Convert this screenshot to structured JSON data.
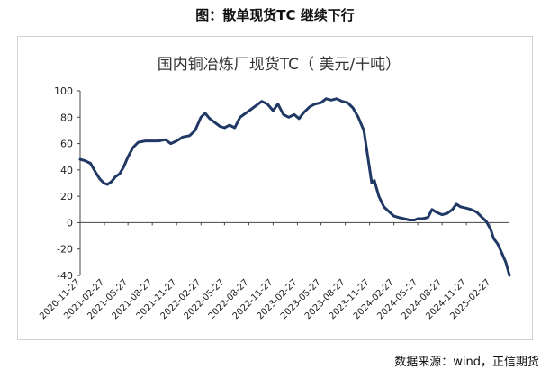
{
  "figure_caption": "图：散单现货TC 继续下行",
  "source": "数据来源：wind，正信期货",
  "colors": {
    "line": "#1f3864",
    "axis": "#444444",
    "frame": "#d0d0d0"
  },
  "chart_data": {
    "type": "line",
    "title": "国内铜冶炼厂现货TC（ 美元/干吨）",
    "xlabel": "",
    "ylabel": "",
    "ylim": [
      -40,
      100
    ],
    "yticks": [
      -40,
      -20,
      0,
      20,
      40,
      60,
      80,
      100
    ],
    "grid": false,
    "legend": "none",
    "x_start": "2020-11-27",
    "x_end": "2025-05-09",
    "xtick_labels": [
      "2020-11-27",
      "2021-02-27",
      "2021-05-27",
      "2021-08-27",
      "2021-11-27",
      "2022-02-27",
      "2022-05-27",
      "2022-08-27",
      "2022-11-27",
      "2023-02-27",
      "2023-05-27",
      "2023-08-27",
      "2023-11-27",
      "2024-02-27",
      "2024-05-27",
      "2024-08-27",
      "2024-11-27",
      "2025-02-27"
    ],
    "series": [
      {
        "points": [
          [
            "2020-11-27",
            48
          ],
          [
            "2020-12-15",
            47
          ],
          [
            "2021-01-05",
            45
          ],
          [
            "2021-01-25",
            38
          ],
          [
            "2021-02-10",
            33
          ],
          [
            "2021-02-25",
            30
          ],
          [
            "2021-03-10",
            29
          ],
          [
            "2021-03-25",
            31
          ],
          [
            "2021-04-10",
            35
          ],
          [
            "2021-04-25",
            37
          ],
          [
            "2021-05-10",
            42
          ],
          [
            "2021-05-27",
            50
          ],
          [
            "2021-06-15",
            57
          ],
          [
            "2021-07-05",
            61
          ],
          [
            "2021-08-01",
            62
          ],
          [
            "2021-08-27",
            62
          ],
          [
            "2021-09-20",
            62
          ],
          [
            "2021-10-15",
            63
          ],
          [
            "2021-11-05",
            60
          ],
          [
            "2021-11-27",
            62
          ],
          [
            "2021-12-20",
            65
          ],
          [
            "2022-01-15",
            66
          ],
          [
            "2022-02-05",
            70
          ],
          [
            "2022-02-27",
            80
          ],
          [
            "2022-03-15",
            83
          ],
          [
            "2022-04-01",
            79
          ],
          [
            "2022-04-20",
            76
          ],
          [
            "2022-05-10",
            73
          ],
          [
            "2022-05-27",
            72
          ],
          [
            "2022-06-15",
            74
          ],
          [
            "2022-07-05",
            72
          ],
          [
            "2022-07-25",
            80
          ],
          [
            "2022-08-15",
            83
          ],
          [
            "2022-09-05",
            86
          ],
          [
            "2022-09-25",
            89
          ],
          [
            "2022-10-15",
            92
          ],
          [
            "2022-11-05",
            90
          ],
          [
            "2022-11-27",
            85
          ],
          [
            "2022-12-15",
            90
          ],
          [
            "2023-01-05",
            82
          ],
          [
            "2023-01-25",
            80
          ],
          [
            "2023-02-15",
            82
          ],
          [
            "2023-03-05",
            79
          ],
          [
            "2023-03-25",
            84
          ],
          [
            "2023-04-15",
            88
          ],
          [
            "2023-05-05",
            90
          ],
          [
            "2023-05-27",
            91
          ],
          [
            "2023-06-15",
            94
          ],
          [
            "2023-07-05",
            93
          ],
          [
            "2023-07-25",
            94
          ],
          [
            "2023-08-15",
            92
          ],
          [
            "2023-09-05",
            91
          ],
          [
            "2023-09-25",
            87
          ],
          [
            "2023-10-15",
            80
          ],
          [
            "2023-11-05",
            70
          ],
          [
            "2023-11-20",
            50
          ],
          [
            "2023-12-05",
            30
          ],
          [
            "2023-12-15",
            32
          ],
          [
            "2024-01-01",
            20
          ],
          [
            "2024-01-20",
            12
          ],
          [
            "2024-02-10",
            8
          ],
          [
            "2024-02-27",
            5
          ],
          [
            "2024-03-15",
            4
          ],
          [
            "2024-04-05",
            3
          ],
          [
            "2024-04-25",
            2
          ],
          [
            "2024-05-15",
            2
          ],
          [
            "2024-05-27",
            3
          ],
          [
            "2024-06-15",
            3
          ],
          [
            "2024-07-05",
            4
          ],
          [
            "2024-07-20",
            10
          ],
          [
            "2024-08-05",
            8
          ],
          [
            "2024-08-27",
            6
          ],
          [
            "2024-09-15",
            7
          ],
          [
            "2024-10-05",
            10
          ],
          [
            "2024-10-20",
            14
          ],
          [
            "2024-11-05",
            12
          ],
          [
            "2024-11-27",
            11
          ],
          [
            "2024-12-15",
            10
          ],
          [
            "2025-01-05",
            8
          ],
          [
            "2025-01-25",
            4
          ],
          [
            "2025-02-10",
            1
          ],
          [
            "2025-02-27",
            -5
          ],
          [
            "2025-03-10",
            -12
          ],
          [
            "2025-03-25",
            -16
          ],
          [
            "2025-04-10",
            -23
          ],
          [
            "2025-04-25",
            -30
          ],
          [
            "2025-05-09",
            -40
          ]
        ]
      }
    ]
  }
}
